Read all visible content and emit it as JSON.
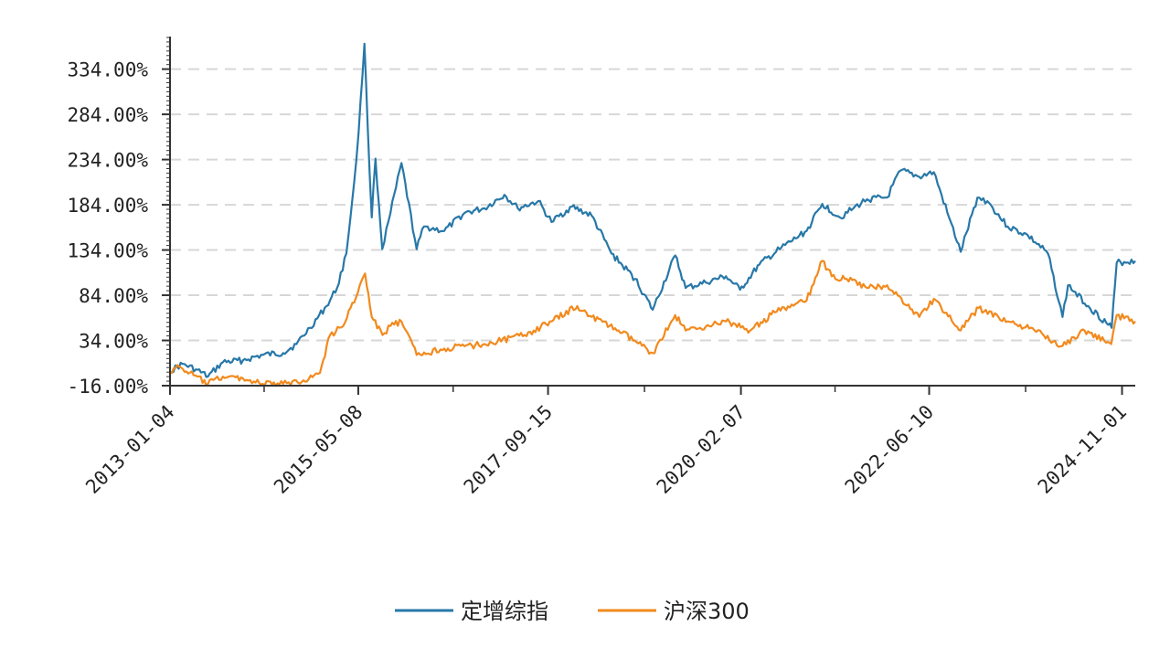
{
  "chart_data": {
    "type": "line",
    "title": "",
    "xlabel": "",
    "ylabel": "",
    "ylim": [
      -16,
      370
    ],
    "yticks": [
      -16,
      34,
      84,
      134,
      184,
      234,
      284,
      334
    ],
    "ytick_labels": [
      "-16.00%",
      "34.00%",
      "84.00%",
      "134.00%",
      "184.00%",
      "234.00%",
      "284.00%",
      "334.00%"
    ],
    "xrange": [
      "2013-01-04",
      "2024-12-31"
    ],
    "xtick_labels": [
      "2013-01-04",
      "2015-05-08",
      "2017-09-15",
      "2020-02-07",
      "2022-06-10",
      "2024-11-01"
    ],
    "grid": "horizontal dashed",
    "legend": "bottom-center",
    "series": [
      {
        "name": "定增综指",
        "color": "#2878a8",
        "points": [
          [
            "2013-01-04",
            0
          ],
          [
            "2013-03-01",
            8
          ],
          [
            "2013-05-01",
            2
          ],
          [
            "2013-06-25",
            -6
          ],
          [
            "2013-09-01",
            10
          ],
          [
            "2013-12-01",
            12
          ],
          [
            "2014-03-01",
            18
          ],
          [
            "2014-06-01",
            20
          ],
          [
            "2014-08-01",
            30
          ],
          [
            "2014-10-01",
            48
          ],
          [
            "2014-12-15",
            72
          ],
          [
            "2015-02-01",
            92
          ],
          [
            "2015-03-15",
            130
          ],
          [
            "2015-04-20",
            210
          ],
          [
            "2015-05-10",
            265
          ],
          [
            "2015-06-05",
            362
          ],
          [
            "2015-06-20",
            270
          ],
          [
            "2015-07-08",
            170
          ],
          [
            "2015-07-25",
            235
          ],
          [
            "2015-08-25",
            135
          ],
          [
            "2015-10-01",
            175
          ],
          [
            "2015-11-20",
            230
          ],
          [
            "2016-01-28",
            135
          ],
          [
            "2016-03-01",
            160
          ],
          [
            "2016-06-01",
            155
          ],
          [
            "2016-09-01",
            175
          ],
          [
            "2016-12-01",
            180
          ],
          [
            "2017-03-01",
            195
          ],
          [
            "2017-05-01",
            180
          ],
          [
            "2017-08-01",
            188
          ],
          [
            "2017-10-01",
            165
          ],
          [
            "2018-01-01",
            182
          ],
          [
            "2018-04-01",
            172
          ],
          [
            "2018-06-30",
            130
          ],
          [
            "2018-10-15",
            102
          ],
          [
            "2019-01-03",
            68
          ],
          [
            "2019-04-15",
            128
          ],
          [
            "2019-06-01",
            92
          ],
          [
            "2019-09-01",
            98
          ],
          [
            "2019-12-01",
            105
          ],
          [
            "2020-02-03",
            90
          ],
          [
            "2020-05-01",
            118
          ],
          [
            "2020-08-01",
            135
          ],
          [
            "2020-12-01",
            155
          ],
          [
            "2021-02-10",
            185
          ],
          [
            "2021-05-01",
            170
          ],
          [
            "2021-07-01",
            180
          ],
          [
            "2021-09-01",
            190
          ],
          [
            "2021-12-01",
            192
          ],
          [
            "2022-02-01",
            222
          ],
          [
            "2022-04-25",
            215
          ],
          [
            "2022-07-01",
            220
          ],
          [
            "2022-09-01",
            175
          ],
          [
            "2022-10-31",
            132
          ],
          [
            "2023-01-15",
            192
          ],
          [
            "2023-03-01",
            188
          ],
          [
            "2023-06-01",
            160
          ],
          [
            "2023-09-01",
            150
          ],
          [
            "2023-12-01",
            130
          ],
          [
            "2024-02-05",
            60
          ],
          [
            "2024-03-01",
            95
          ],
          [
            "2024-06-01",
            72
          ],
          [
            "2024-09-15",
            48
          ],
          [
            "2024-10-08",
            120
          ],
          [
            "2024-12-31",
            122
          ]
        ]
      },
      {
        "name": "沪深300",
        "color": "#f28a1e",
        "points": [
          [
            "2013-01-04",
            0
          ],
          [
            "2013-02-15",
            5
          ],
          [
            "2013-06-25",
            -14
          ],
          [
            "2013-09-01",
            -6
          ],
          [
            "2013-12-01",
            -8
          ],
          [
            "2014-03-01",
            -14
          ],
          [
            "2014-06-01",
            -14
          ],
          [
            "2014-09-01",
            -10
          ],
          [
            "2014-11-15",
            -2
          ],
          [
            "2014-12-31",
            40
          ],
          [
            "2015-03-01",
            50
          ],
          [
            "2015-06-08",
            108
          ],
          [
            "2015-07-08",
            60
          ],
          [
            "2015-08-26",
            40
          ],
          [
            "2015-10-01",
            50
          ],
          [
            "2015-11-20",
            55
          ],
          [
            "2016-01-28",
            18
          ],
          [
            "2016-06-01",
            25
          ],
          [
            "2016-12-01",
            30
          ],
          [
            "2017-06-01",
            40
          ],
          [
            "2017-10-01",
            55
          ],
          [
            "2018-01-26",
            72
          ],
          [
            "2018-04-01",
            60
          ],
          [
            "2018-08-01",
            45
          ],
          [
            "2019-01-03",
            20
          ],
          [
            "2019-04-15",
            62
          ],
          [
            "2019-06-01",
            45
          ],
          [
            "2019-12-01",
            55
          ],
          [
            "2020-03-20",
            45
          ],
          [
            "2020-07-10",
            65
          ],
          [
            "2020-12-01",
            78
          ],
          [
            "2021-02-10",
            122
          ],
          [
            "2021-03-25",
            105
          ],
          [
            "2021-06-01",
            102
          ],
          [
            "2021-09-01",
            92
          ],
          [
            "2021-12-01",
            95
          ],
          [
            "2022-04-26",
            60
          ],
          [
            "2022-07-01",
            80
          ],
          [
            "2022-10-31",
            45
          ],
          [
            "2023-01-20",
            70
          ],
          [
            "2023-06-01",
            55
          ],
          [
            "2023-10-01",
            45
          ],
          [
            "2024-02-05",
            28
          ],
          [
            "2024-05-15",
            45
          ],
          [
            "2024-09-13",
            30
          ],
          [
            "2024-10-08",
            62
          ],
          [
            "2024-12-31",
            55
          ]
        ]
      }
    ]
  }
}
